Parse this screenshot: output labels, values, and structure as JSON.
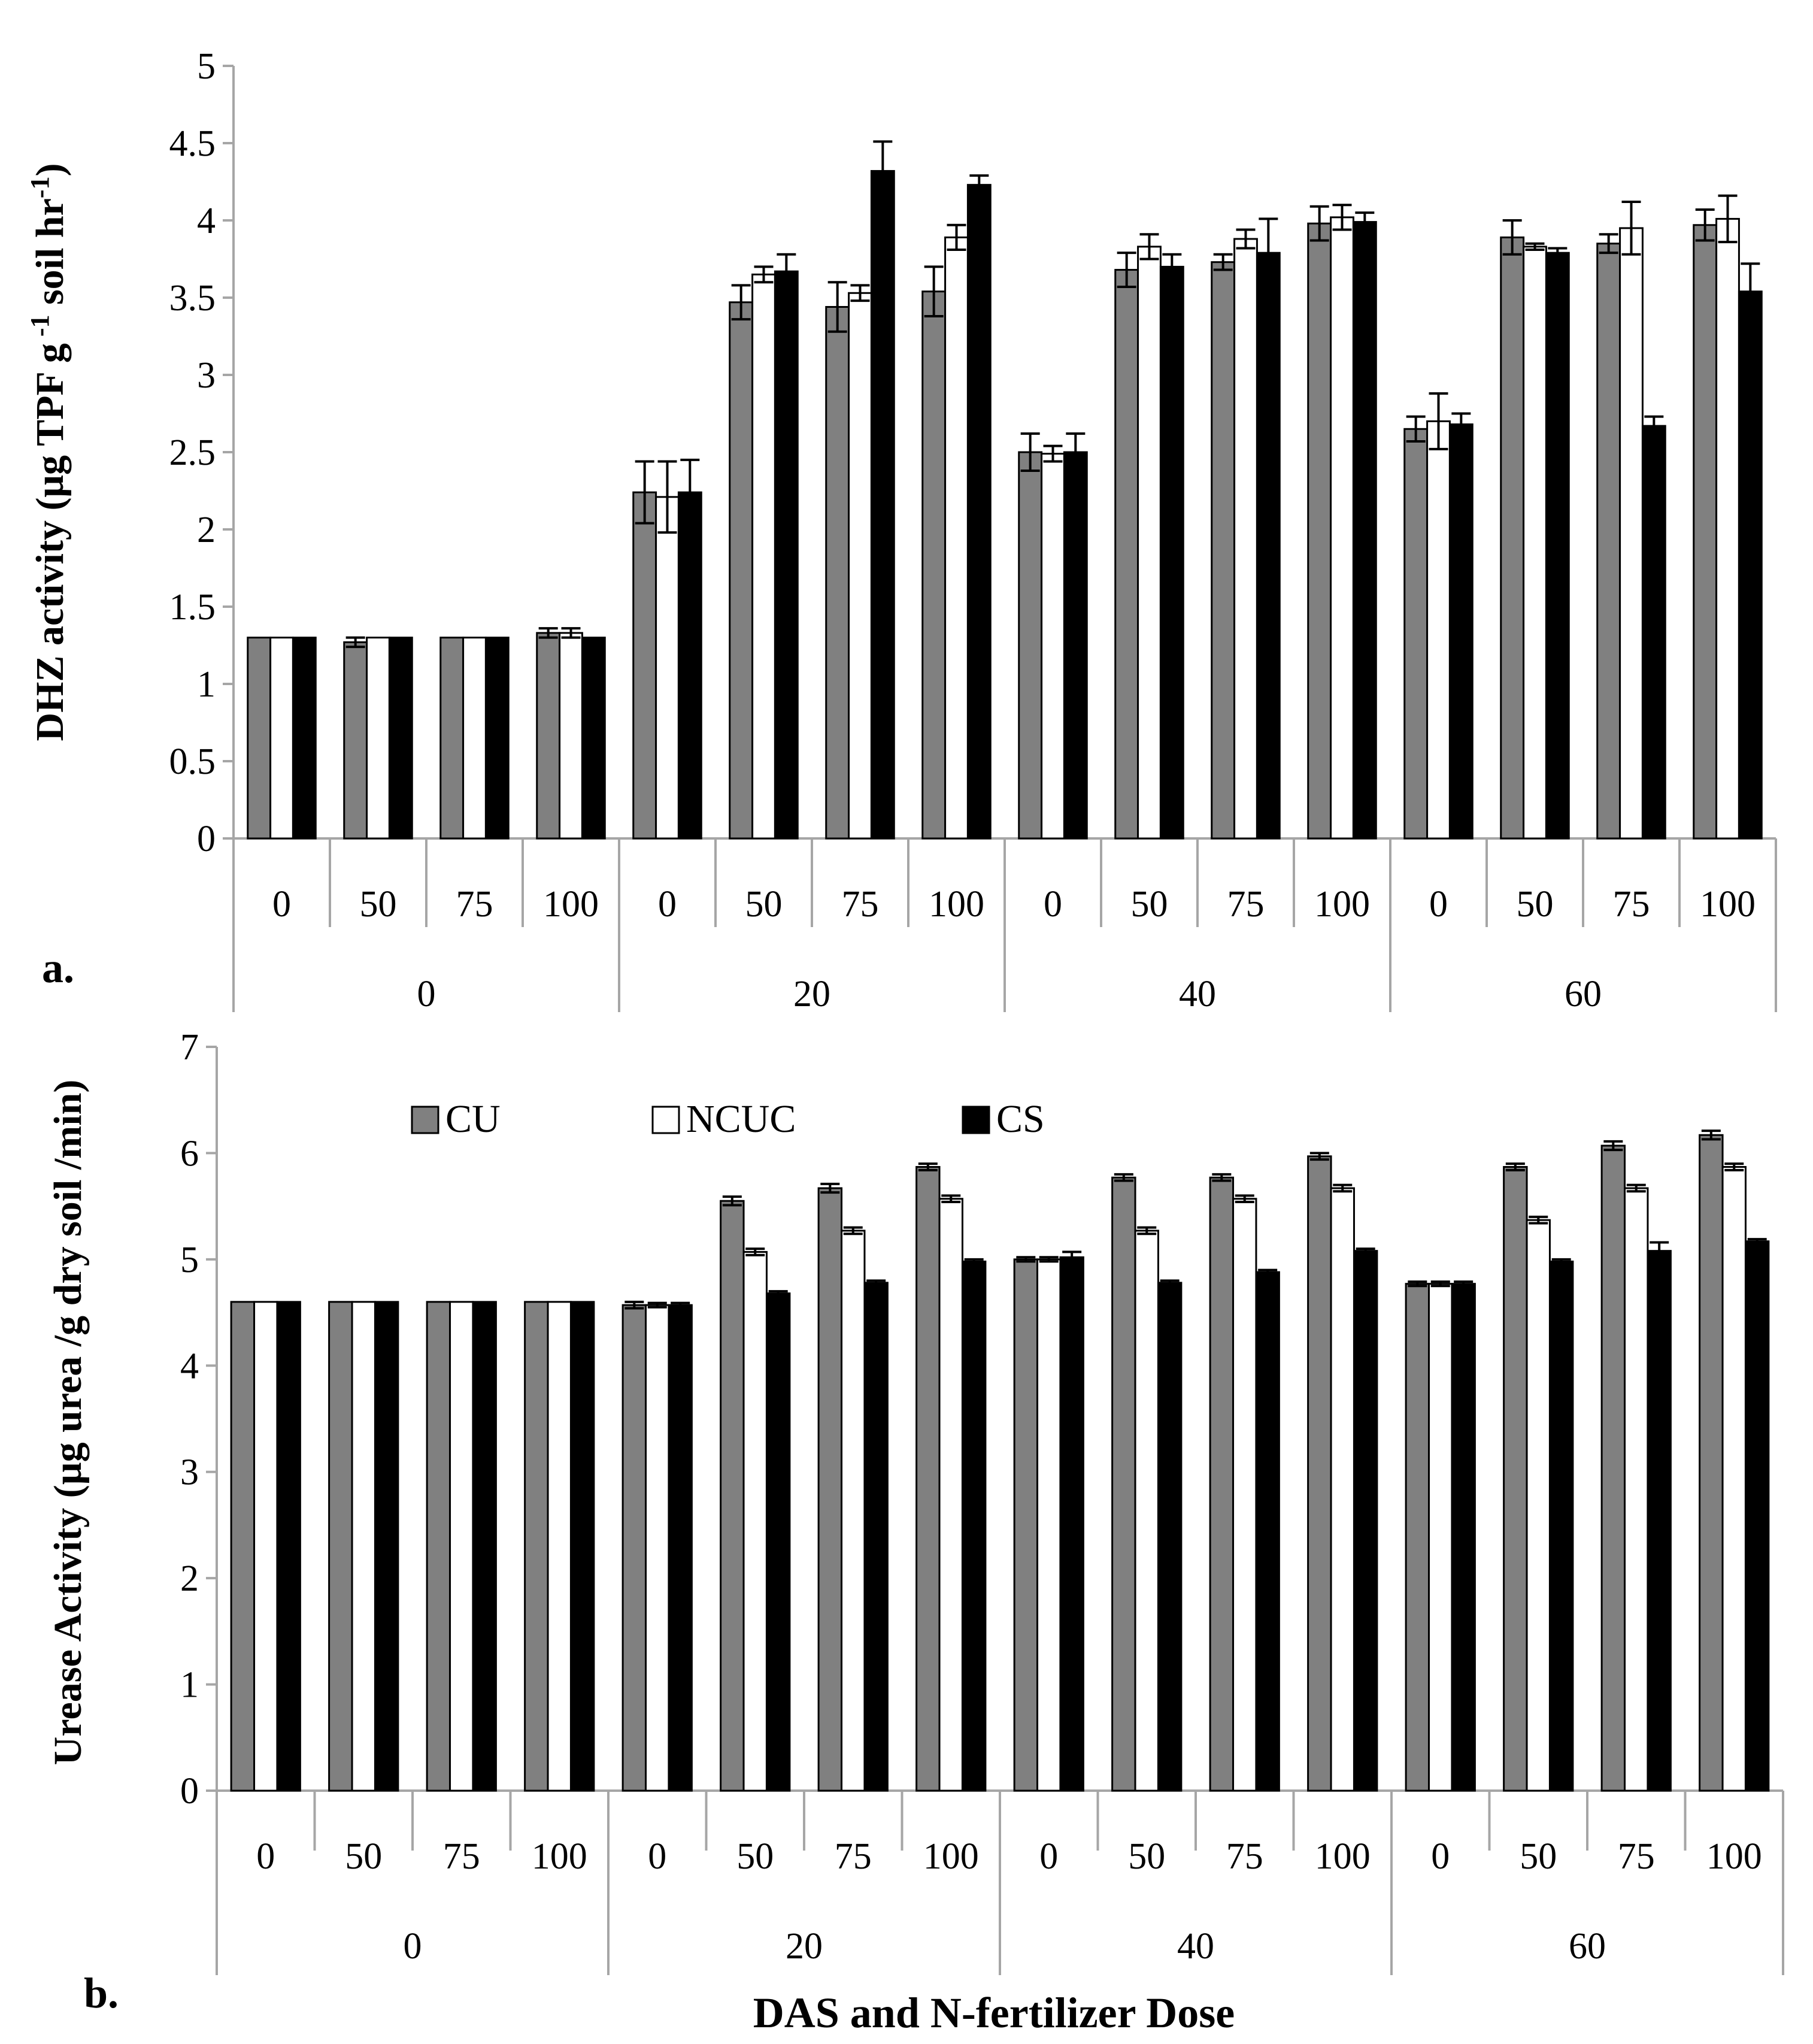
{
  "colors": {
    "CU": "#808080",
    "NCUC": "#ffffff",
    "CS": "#000000",
    "outline": "#000000",
    "axis": "#a6a6a6"
  },
  "legend": [
    {
      "key": "CU",
      "label": "CU"
    },
    {
      "key": "NCUC",
      "label": "NCUC"
    },
    {
      "key": "CS",
      "label": "CS"
    }
  ],
  "chart_data": [
    {
      "type": "bar",
      "panel": "a.",
      "ylabel": "DHZ activity (μg TPF g",
      "ylabel_sup1": " -1",
      "ylabel_mid": " soil hr",
      "ylabel_sup2": "-1",
      "ylabel_end": ")",
      "xlabel": "",
      "ylim": [
        0,
        5
      ],
      "yticks": [
        "0",
        "0.5",
        "1",
        "1.5",
        "2",
        "2.5",
        "3",
        "3.5",
        "4",
        "4.5",
        "5"
      ],
      "groups": [
        "0",
        "20",
        "40",
        "60"
      ],
      "doses": [
        "0",
        "50",
        "75",
        "100"
      ],
      "series": [
        {
          "name": "CU",
          "values": [
            1.3,
            1.27,
            1.3,
            1.33,
            2.24,
            3.47,
            3.44,
            3.54,
            2.5,
            3.68,
            3.73,
            3.98,
            2.65,
            3.89,
            3.85,
            3.97
          ],
          "errors": [
            0.0,
            0.03,
            0.0,
            0.03,
            0.2,
            0.11,
            0.16,
            0.16,
            0.12,
            0.11,
            0.05,
            0.11,
            0.08,
            0.11,
            0.06,
            0.1
          ]
        },
        {
          "name": "NCUC",
          "values": [
            1.3,
            1.3,
            1.3,
            1.33,
            2.21,
            3.65,
            3.53,
            3.89,
            2.49,
            3.83,
            3.88,
            4.02,
            2.7,
            3.83,
            3.95,
            4.01
          ],
          "errors": [
            0.0,
            0.0,
            0.0,
            0.03,
            0.23,
            0.05,
            0.05,
            0.08,
            0.05,
            0.08,
            0.06,
            0.08,
            0.18,
            0.02,
            0.17,
            0.15
          ]
        },
        {
          "name": "CS",
          "values": [
            1.3,
            1.3,
            1.3,
            1.3,
            2.24,
            3.67,
            4.32,
            4.23,
            2.5,
            3.7,
            3.79,
            3.99,
            2.68,
            3.79,
            2.67,
            3.54
          ],
          "errors": [
            0.0,
            0.0,
            0.0,
            0.0,
            0.21,
            0.11,
            0.19,
            0.06,
            0.12,
            0.08,
            0.22,
            0.06,
            0.07,
            0.03,
            0.06,
            0.18
          ]
        }
      ]
    },
    {
      "type": "bar",
      "panel": "b.",
      "ylabel": "Urease Activity (µg urea /g dry soil /min)",
      "xlabel": "DAS and N-fertilizer Dose",
      "ylim": [
        0,
        7
      ],
      "yticks": [
        "0",
        "1",
        "2",
        "3",
        "4",
        "5",
        "6",
        "7"
      ],
      "groups": [
        "0",
        "20",
        "40",
        "60"
      ],
      "doses": [
        "0",
        "50",
        "75",
        "100"
      ],
      "series": [
        {
          "name": "CU",
          "values": [
            4.6,
            4.6,
            4.6,
            4.6,
            4.57,
            5.55,
            5.67,
            5.87,
            5.0,
            5.77,
            5.77,
            5.97,
            4.77,
            5.87,
            6.07,
            6.17
          ],
          "errors": [
            0,
            0,
            0,
            0,
            0.03,
            0.04,
            0.04,
            0.03,
            0.02,
            0.03,
            0.03,
            0.03,
            0.02,
            0.03,
            0.04,
            0.04
          ]
        },
        {
          "name": "NCUC",
          "values": [
            4.6,
            4.6,
            4.6,
            4.6,
            4.57,
            5.07,
            5.27,
            5.57,
            5.0,
            5.27,
            5.57,
            5.67,
            4.77,
            5.37,
            5.67,
            5.87
          ],
          "errors": [
            0,
            0,
            0,
            0,
            0.02,
            0.03,
            0.03,
            0.03,
            0.02,
            0.03,
            0.03,
            0.03,
            0.02,
            0.03,
            0.03,
            0.03
          ]
        },
        {
          "name": "CS",
          "values": [
            4.6,
            4.6,
            4.6,
            4.6,
            4.57,
            4.68,
            4.78,
            4.98,
            5.02,
            4.78,
            4.88,
            5.08,
            4.77,
            4.98,
            5.08,
            5.17
          ],
          "errors": [
            0,
            0,
            0,
            0,
            0.02,
            0.02,
            0.02,
            0.02,
            0.05,
            0.02,
            0.02,
            0.02,
            0.02,
            0.02,
            0.08,
            0.02
          ]
        }
      ]
    }
  ]
}
